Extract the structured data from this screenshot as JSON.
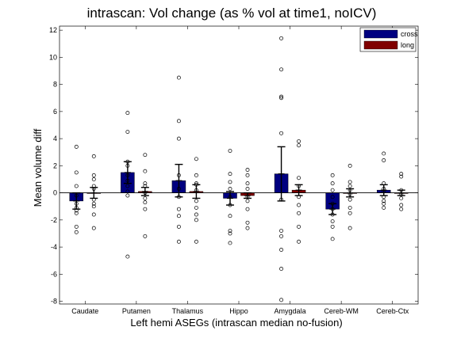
{
  "chart_data": {
    "type": "bar",
    "title": "intrascan: Vol change (as % vol at time1, noICV)",
    "xlabel": "Left hemi ASEGs (intrascan median no-fusion)",
    "ylabel": "Mean volume diff",
    "ylim": [
      -8.2,
      12.3
    ],
    "yticks": [
      -8,
      -6,
      -4,
      -2,
      0,
      2,
      4,
      6,
      8,
      10,
      12
    ],
    "categories": [
      "Caudate",
      "Putamen",
      "Thalamus",
      "Hippo",
      "Amygdala",
      "Cereb-WM",
      "Cereb-Ctx"
    ],
    "legend_position": "top-right",
    "grid": false,
    "series": [
      {
        "name": "cross",
        "color": "#000080",
        "values": [
          -0.6,
          1.5,
          0.9,
          -0.4,
          1.4,
          -1.2,
          0.2
        ],
        "errors": [
          0.6,
          0.8,
          1.2,
          0.5,
          2.0,
          0.4,
          0.4
        ],
        "points": [
          [
            3.4,
            1.5,
            0.5,
            -0.2,
            -0.8,
            -1.1,
            -1.3,
            -1.5,
            -2.5,
            -2.9
          ],
          [
            5.9,
            4.5,
            2.3,
            2.0,
            1.3,
            0.9,
            0.5,
            0.1,
            -0.2,
            -4.7
          ],
          [
            8.5,
            5.3,
            4.0,
            1.3,
            0.3,
            -0.3,
            -1.2,
            -1.7,
            -2.5,
            -3.6
          ],
          [
            3.1,
            1.4,
            0.8,
            0.3,
            -0.3,
            -0.9,
            -1.7,
            -2.8,
            -3.0,
            -3.7
          ],
          [
            11.4,
            9.1,
            7.1,
            7.0,
            4.4,
            -0.5,
            -2.8,
            -3.2,
            -4.2,
            -5.6,
            -7.9
          ],
          [
            1.3,
            0.7,
            0.2,
            -0.3,
            -0.8,
            -1.2,
            -1.6,
            -2.1,
            -2.5,
            -3.4
          ],
          [
            2.9,
            2.4,
            0.7,
            0.3,
            0.1,
            -0.3,
            -0.6,
            -0.8,
            -1.1
          ]
        ]
      },
      {
        "name": "long",
        "color": "#800000",
        "values": [
          0.0,
          0.1,
          0.1,
          -0.2,
          0.2,
          0.0,
          0.0
        ],
        "errors": [
          0.4,
          0.3,
          0.5,
          0.2,
          0.4,
          0.3,
          0.2
        ],
        "points": [
          [
            2.7,
            1.3,
            1.0,
            0.5,
            0.3,
            -0.5,
            -0.8,
            -1.0,
            -1.6,
            -2.6
          ],
          [
            2.8,
            1.6,
            0.7,
            0.5,
            0.0,
            -0.4,
            -0.7,
            -1.2,
            -3.2
          ],
          [
            2.5,
            1.3,
            0.7,
            0.6,
            0.2,
            -0.6,
            -1.1,
            -1.6,
            -2.0,
            -3.6
          ],
          [
            1.7,
            1.3,
            0.7,
            0.3,
            -0.3,
            -0.6,
            -1.2,
            -2.2,
            -2.6
          ],
          [
            3.8,
            3.5,
            1.1,
            0.5,
            -0.3,
            -0.9,
            -1.5,
            -2.5,
            -3.6
          ],
          [
            2.0,
            0.8,
            0.5,
            0.2,
            -0.1,
            -0.5,
            -1.1,
            -1.5,
            -2.6
          ],
          [
            1.4,
            1.2,
            0.2,
            -0.1,
            -0.4,
            -0.9,
            -1.2
          ]
        ]
      }
    ]
  }
}
